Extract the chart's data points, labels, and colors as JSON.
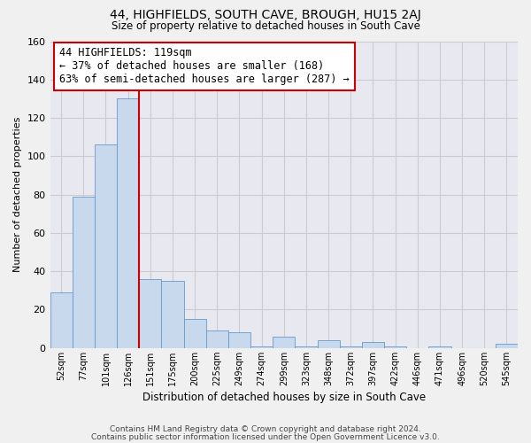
{
  "title": "44, HIGHFIELDS, SOUTH CAVE, BROUGH, HU15 2AJ",
  "subtitle": "Size of property relative to detached houses in South Cave",
  "xlabel": "Distribution of detached houses by size in South Cave",
  "ylabel": "Number of detached properties",
  "bar_color": "#c8d9ed",
  "bar_edge_color": "#6699cc",
  "bin_labels": [
    "52sqm",
    "77sqm",
    "101sqm",
    "126sqm",
    "151sqm",
    "175sqm",
    "200sqm",
    "225sqm",
    "249sqm",
    "274sqm",
    "299sqm",
    "323sqm",
    "348sqm",
    "372sqm",
    "397sqm",
    "422sqm",
    "446sqm",
    "471sqm",
    "496sqm",
    "520sqm",
    "545sqm"
  ],
  "bar_heights": [
    29,
    79,
    106,
    130,
    36,
    35,
    15,
    9,
    8,
    1,
    6,
    1,
    4,
    1,
    3,
    1,
    0,
    1,
    0,
    0,
    2
  ],
  "vline_x_index": 3.5,
  "vline_color": "#cc0000",
  "annotation_title": "44 HIGHFIELDS: 119sqm",
  "annotation_line1": "← 37% of detached houses are smaller (168)",
  "annotation_line2": "63% of semi-detached houses are larger (287) →",
  "annotation_box_color": "white",
  "annotation_box_edge": "#cc0000",
  "ylim": [
    0,
    160
  ],
  "yticks": [
    0,
    20,
    40,
    60,
    80,
    100,
    120,
    140,
    160
  ],
  "footer1": "Contains HM Land Registry data © Crown copyright and database right 2024.",
  "footer2": "Contains public sector information licensed under the Open Government Licence v3.0.",
  "grid_color": "#cccccc",
  "background_color": "#f0f0f0",
  "plot_bg_color": "#e8e8f0"
}
